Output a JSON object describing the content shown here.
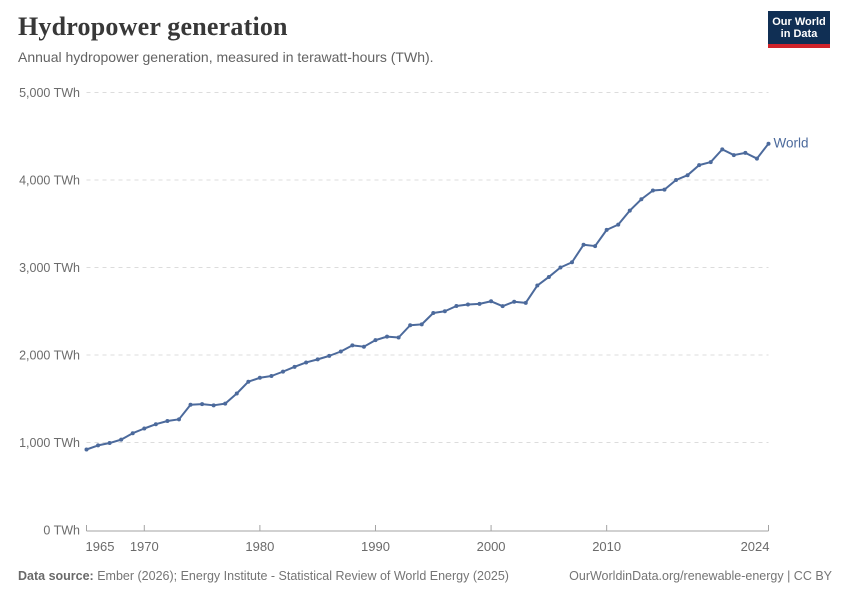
{
  "header": {
    "title": "Hydropower generation",
    "subtitle": "Annual hydropower generation, measured in terawatt-hours (TWh)."
  },
  "logo": {
    "line1": "Our World",
    "line2": "in Data",
    "bg_color": "#102f54",
    "accent_color": "#d0232a"
  },
  "chart_data": {
    "type": "line",
    "title": "Hydropower generation",
    "ylabel": "TWh",
    "xlabel": "",
    "grid": "horizontal-dashed",
    "legend_position": "end-of-line",
    "xlim": [
      1965,
      2024
    ],
    "ylim": [
      0,
      5000
    ],
    "x_ticks": [
      1965,
      1970,
      1980,
      1990,
      2000,
      2010,
      2024
    ],
    "y_ticks": [
      {
        "value": 0,
        "label": "0 TWh"
      },
      {
        "value": 1000,
        "label": "1,000 TWh"
      },
      {
        "value": 2000,
        "label": "2,000 TWh"
      },
      {
        "value": 3000,
        "label": "3,000 TWh"
      },
      {
        "value": 4000,
        "label": "4,000 TWh"
      },
      {
        "value": 5000,
        "label": "5,000 TWh"
      }
    ],
    "series": [
      {
        "name": "World",
        "color": "#4c6a9c",
        "x": [
          1965,
          1966,
          1967,
          1968,
          1969,
          1970,
          1971,
          1972,
          1973,
          1974,
          1975,
          1976,
          1977,
          1978,
          1979,
          1980,
          1981,
          1982,
          1983,
          1984,
          1985,
          1986,
          1987,
          1988,
          1989,
          1990,
          1991,
          1992,
          1993,
          1994,
          1995,
          1996,
          1997,
          1998,
          1999,
          2000,
          2001,
          2002,
          2003,
          2004,
          2005,
          2006,
          2007,
          2008,
          2009,
          2010,
          2011,
          2012,
          2013,
          2014,
          2015,
          2016,
          2017,
          2018,
          2019,
          2020,
          2021,
          2022,
          2023,
          2024
        ],
        "values": [
          920,
          967,
          994,
          1033,
          1106,
          1160,
          1209,
          1246,
          1265,
          1431,
          1438,
          1425,
          1444,
          1560,
          1695,
          1740,
          1760,
          1810,
          1865,
          1915,
          1950,
          1990,
          2040,
          2110,
          2095,
          2170,
          2210,
          2200,
          2340,
          2350,
          2480,
          2500,
          2560,
          2577,
          2584,
          2614,
          2558,
          2609,
          2596,
          2794,
          2892,
          3000,
          3060,
          3260,
          3245,
          3430,
          3490,
          3650,
          3780,
          3880,
          3890,
          4000,
          4055,
          4170,
          4205,
          4350,
          4285,
          4310,
          4245,
          4415
        ]
      }
    ]
  },
  "footer": {
    "datasource_label": "Data source:",
    "datasource_text": " Ember (2026); Energy Institute - Statistical Review of World Energy (2025)",
    "link_text": "OurWorldinData.org/renewable-energy | CC BY"
  }
}
